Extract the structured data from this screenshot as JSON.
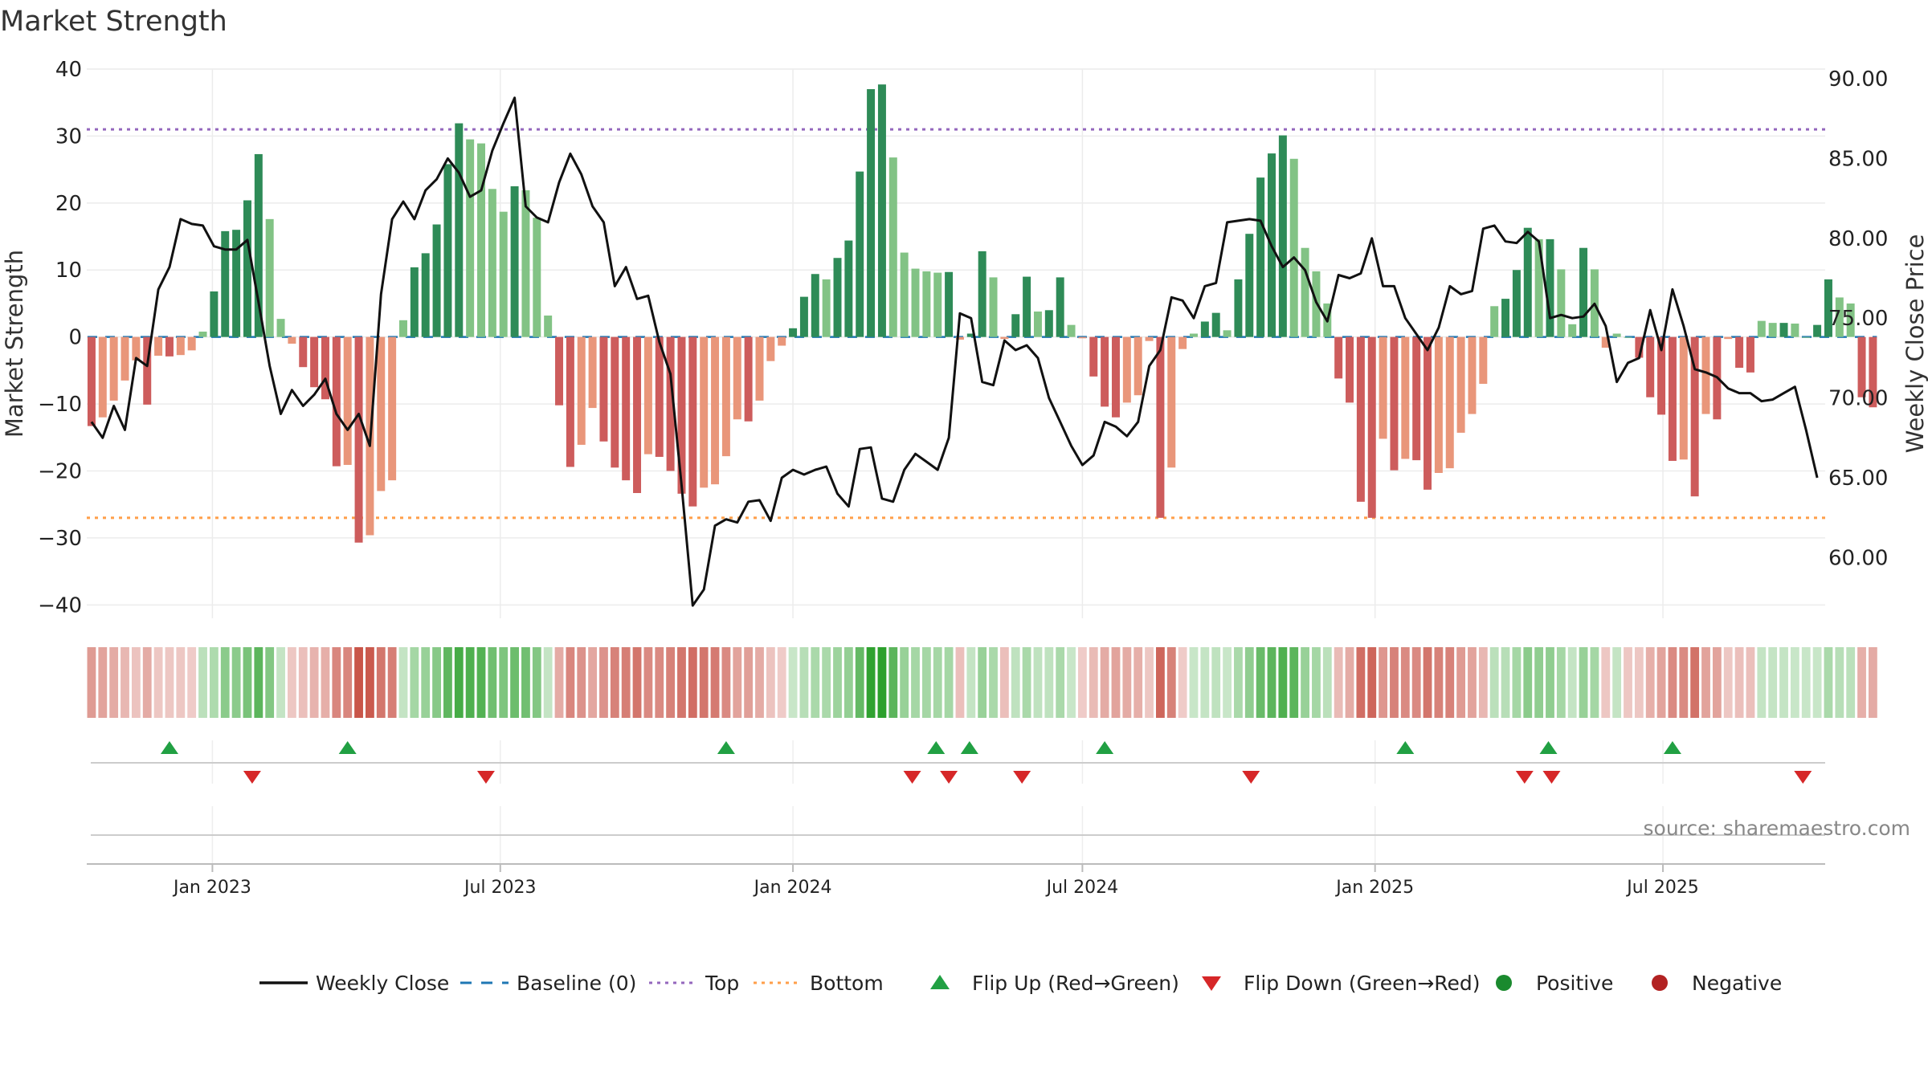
{
  "chart_data": {
    "type": "bar",
    "title": "Market Strength",
    "ylabel_left": "Market Strength",
    "ylabel_right": "Weekly Close Price",
    "ylim_left": [
      -42,
      40
    ],
    "ylim_right": [
      56.2,
      90.6
    ],
    "yticks_left": [
      40,
      30,
      20,
      10,
      0,
      -10,
      -20,
      -30,
      -40
    ],
    "yticks_left_labels": [
      "40",
      "30",
      "20",
      "10",
      "0",
      "−10",
      "−20",
      "−30",
      "−40"
    ],
    "yticks_right": [
      90,
      85,
      80,
      75,
      70,
      65,
      60
    ],
    "yticks_right_labels": [
      "90.00",
      "85.00",
      "80.00",
      "75.00",
      "70.00",
      "65.00",
      "60.00"
    ],
    "x_start": "2022-10-17",
    "x_range": [
      "2022-10-14",
      "2025-10-11"
    ],
    "x_step_days": 7,
    "xtick_dates": [
      "2023-01-01",
      "2023-07-01",
      "2024-01-01",
      "2024-07-01",
      "2025-01-01",
      "2025-07-01"
    ],
    "xtick_labels": [
      "Jan 2023",
      "Jul 2023",
      "Jan 2024",
      "Jul 2024",
      "Jan 2025",
      "Jul 2025"
    ],
    "top_level": 31,
    "bottom_level": -27,
    "baseline": 0,
    "strength": [
      -13.3,
      -12.0,
      -9.5,
      -6.5,
      -3.5,
      -10.1,
      -2.8,
      -2.9,
      -2.7,
      -2.0,
      0.8,
      6.8,
      15.8,
      16.0,
      20.4,
      27.3,
      17.6,
      2.7,
      -1.0,
      -4.5,
      -7.5,
      -9.3,
      -19.3,
      -19.1,
      -30.7,
      -29.6,
      -23.0,
      -21.4,
      2.5,
      10.4,
      12.5,
      16.8,
      25.8,
      31.9,
      29.5,
      28.9,
      22.1,
      18.7,
      22.5,
      21.9,
      17.8,
      3.2,
      -10.2,
      -19.4,
      -16.1,
      -10.6,
      -15.6,
      -19.5,
      -21.4,
      -23.3,
      -17.5,
      -17.9,
      -20.0,
      -23.4,
      -25.3,
      -22.5,
      -22.0,
      -17.8,
      -12.3,
      -12.6,
      -9.5,
      -3.6,
      -1.3,
      1.3,
      6.0,
      9.4,
      8.6,
      11.8,
      14.4,
      24.7,
      37.0,
      37.7,
      26.8,
      12.6,
      10.2,
      9.8,
      9.6,
      9.7,
      -0.4,
      0.5,
      12.8,
      8.9,
      -0.3,
      3.4,
      9.0,
      3.8,
      4.0,
      8.9,
      1.8,
      -0.2,
      -5.9,
      -10.4,
      -12.0,
      -9.8,
      -8.7,
      -0.6,
      -27.0,
      -19.5,
      -1.8,
      0.5,
      2.3,
      3.6,
      1.0,
      8.6,
      15.4,
      23.8,
      27.4,
      30.1,
      26.6,
      13.3,
      9.8,
      5.0,
      -6.2,
      -9.8,
      -24.6,
      -27.0,
      -15.2,
      -19.9,
      -18.2,
      -18.4,
      -22.8,
      -20.3,
      -19.6,
      -14.3,
      -11.5,
      -7.0,
      4.6,
      5.7,
      10.0,
      16.3,
      14.6,
      14.6,
      10.1,
      1.9,
      13.3,
      10.1,
      -1.6,
      0.5,
      0.0,
      -3.1,
      -9.0,
      -11.6,
      -18.5,
      -18.3,
      -23.8,
      -11.5,
      -12.3,
      -0.3,
      -4.6,
      -5.3,
      2.4,
      2.1,
      2.1,
      2.0,
      0.0,
      1.8,
      8.6,
      5.9,
      5.0,
      -9.0,
      -10.5
    ],
    "price": [
      68.5,
      67.5,
      69.5,
      68.0,
      72.5,
      72.0,
      76.8,
      78.2,
      81.2,
      80.9,
      80.8,
      79.5,
      79.3,
      79.3,
      79.9,
      76.0,
      72.0,
      69.0,
      70.5,
      69.5,
      70.2,
      71.2,
      69.0,
      68.0,
      69.0,
      67.0,
      76.5,
      81.2,
      82.3,
      81.2,
      83.0,
      83.7,
      85.0,
      84.1,
      82.6,
      83.0,
      85.5,
      87.2,
      88.8,
      82.0,
      81.3,
      81.0,
      83.5,
      85.3,
      84.0,
      82.0,
      81.0,
      77.0,
      78.2,
      76.2,
      76.4,
      73.5,
      71.5,
      64.5,
      57.0,
      58.0,
      62.0,
      62.4,
      62.2,
      63.5,
      63.6,
      62.3,
      65.0,
      65.5,
      65.2,
      65.5,
      65.7,
      64.0,
      63.2,
      66.8,
      66.9,
      63.7,
      63.5,
      65.5,
      66.5,
      66.0,
      65.5,
      67.5,
      75.3,
      75.0,
      71.0,
      70.8,
      73.6,
      73.0,
      73.3,
      72.5,
      70.0,
      68.5,
      67.0,
      65.8,
      66.4,
      68.5,
      68.2,
      67.6,
      68.5,
      72.0,
      73.0,
      76.3,
      76.1,
      75.0,
      77.0,
      77.2,
      81.0,
      81.1,
      81.2,
      81.1,
      79.5,
      78.2,
      78.8,
      78.0,
      76.0,
      74.8,
      77.7,
      77.5,
      77.8,
      80.0,
      77.0,
      77.0,
      75.0,
      74.0,
      73.0,
      74.4,
      77.0,
      76.5,
      76.7,
      80.6,
      80.8,
      79.8,
      79.7,
      80.4,
      79.8,
      75.0,
      75.2,
      75.0,
      75.1,
      75.9,
      74.5,
      71.0,
      72.2,
      72.5,
      75.5,
      73.0,
      76.8,
      74.5,
      71.8,
      71.6,
      71.3,
      70.6,
      70.3,
      70.3,
      69.8,
      69.9,
      70.3,
      70.7,
      68.0,
      65.0
    ],
    "shading_strength": [
      -14,
      -12,
      -10,
      -7,
      -4,
      -10,
      -3,
      -3,
      -3,
      -2,
      5,
      8,
      16,
      16,
      20,
      27,
      18,
      3,
      -3,
      -5,
      -8,
      -9,
      -19,
      -19,
      -31,
      -30,
      -23,
      -21,
      3,
      10,
      13,
      17,
      26,
      32,
      30,
      29,
      22,
      19,
      23,
      22,
      18,
      3,
      -10,
      -19,
      -16,
      -11,
      -16,
      -20,
      -21,
      -23,
      -18,
      -18,
      -20,
      -23,
      -25,
      -23,
      -22,
      -18,
      -12,
      -13,
      -10,
      -4,
      -2,
      2,
      6,
      9,
      9,
      12,
      14,
      25,
      37,
      38,
      27,
      13,
      10,
      10,
      10,
      10,
      -5,
      3,
      13,
      9,
      -5,
      4,
      9,
      4,
      4,
      9,
      2,
      -2,
      -6,
      -10,
      -12,
      -10,
      -9,
      -3,
      -27,
      -20,
      -2,
      2,
      3,
      4,
      2,
      9,
      15,
      24,
      27,
      30,
      27,
      13,
      10,
      5,
      -6,
      -10,
      -25,
      -27,
      -15,
      -20,
      -18,
      -18,
      -23,
      -20,
      -20,
      -14,
      -12,
      -7,
      5,
      6,
      10,
      16,
      15,
      15,
      10,
      3,
      13,
      10,
      -3,
      3,
      -3,
      -3,
      -9,
      -12,
      -18,
      -18,
      -24,
      -12,
      -12,
      -3,
      -5,
      -5,
      3,
      3,
      3,
      2,
      2,
      2,
      9,
      6,
      5,
      -9,
      -10
    ],
    "flip_up_dates": [
      "2022-12-05",
      "2023-03-27",
      "2023-11-20",
      "2024-03-31",
      "2024-04-21",
      "2024-07-15",
      "2025-01-20",
      "2025-04-20",
      "2025-07-07"
    ],
    "flip_down_dates": [
      "2023-01-26",
      "2023-06-22",
      "2024-03-16",
      "2024-04-08",
      "2024-05-24",
      "2024-10-15",
      "2025-04-05",
      "2025-04-22",
      "2025-09-27"
    ],
    "colors": {
      "strong_pos": "#2e8b57",
      "weak_pos": "#82c385",
      "strong_neg": "#cd5c5c",
      "weak_neg": "#e9967a",
      "price_line": "#111111",
      "baseline": "#1f77b4",
      "top": "#9467bd",
      "bottom": "#ff9f4a",
      "flip_up": "#21a043",
      "flip_down": "#d62728",
      "positive": "#1a8a2e",
      "negative": "#b22222"
    },
    "legend": [
      {
        "label": "Weekly Close",
        "kind": "line"
      },
      {
        "label": "Baseline (0)",
        "kind": "dash"
      },
      {
        "label": "Top",
        "kind": "dot-top"
      },
      {
        "label": "Bottom",
        "kind": "dot-bottom"
      },
      {
        "label": "Flip Up (Red→Green)",
        "kind": "tri-up"
      },
      {
        "label": "Flip Down (Green→Red)",
        "kind": "tri-down"
      },
      {
        "label": "Positive",
        "kind": "dot-pos"
      },
      {
        "label": "Negative",
        "kind": "dot-neg"
      }
    ],
    "legend_position": "bottom-center",
    "source_text": "source: sharemaestro.com"
  }
}
